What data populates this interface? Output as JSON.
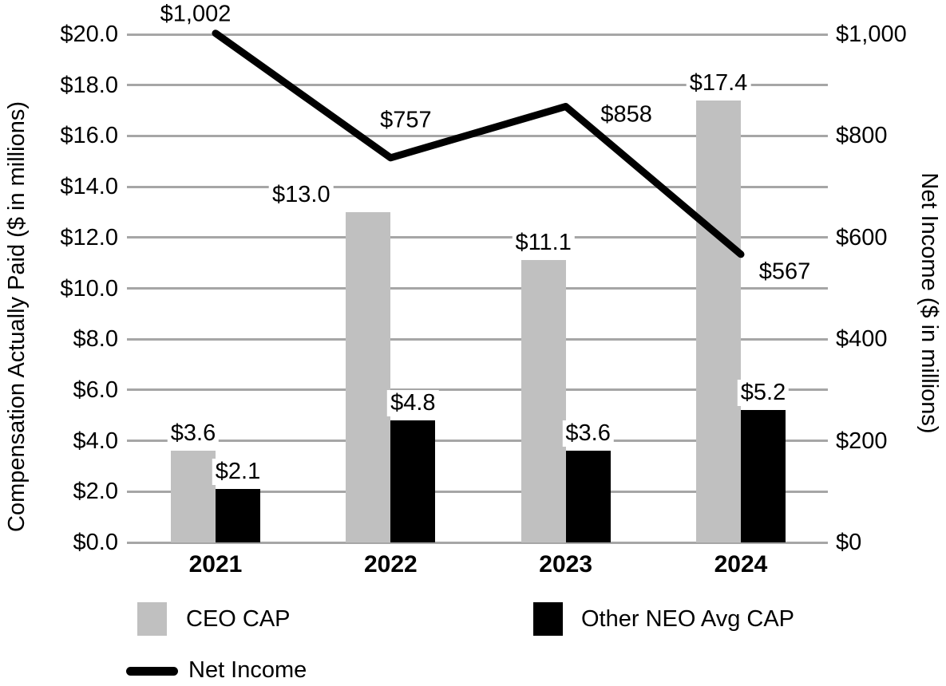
{
  "chart_data": {
    "type": "combo-bar-line",
    "categories": [
      "2021",
      "2022",
      "2023",
      "2024"
    ],
    "series": [
      {
        "type": "bar",
        "name": "CEO CAP",
        "axis": "left",
        "color": "#c0c0c0",
        "values": [
          3.6,
          13.0,
          11.1,
          17.4
        ],
        "labels": [
          "$3.6",
          "$13.0",
          "$11.1",
          "$17.4"
        ]
      },
      {
        "type": "bar",
        "name": "Other NEO Avg CAP",
        "axis": "left",
        "color": "#000000",
        "values": [
          2.1,
          4.8,
          3.6,
          5.2
        ],
        "labels": [
          "$2.1",
          "$4.8",
          "$3.6",
          "$5.2"
        ]
      },
      {
        "type": "line",
        "name": "Net Income",
        "axis": "right",
        "color": "#000000",
        "values": [
          1002,
          757,
          858,
          567
        ],
        "labels": [
          "$1,002",
          "$757",
          "$858",
          "$567"
        ]
      }
    ],
    "left_axis": {
      "title": "Compensation Actually Paid ($ in millions)",
      "min": 0,
      "max": 20,
      "step": 2,
      "tick_labels": [
        "$0.0",
        "$2.0",
        "$4.0",
        "$6.0",
        "$8.0",
        "$10.0",
        "$12.0",
        "$14.0",
        "$16.0",
        "$18.0",
        "$20.0"
      ]
    },
    "right_axis": {
      "title": "Net Income ($ in millions)",
      "min": 0,
      "max": 1000,
      "step": 200,
      "tick_labels": [
        "$0",
        "$200",
        "$400",
        "$600",
        "$800",
        "$1,000"
      ]
    },
    "legend": {
      "items": [
        "CEO CAP",
        "Other NEO Avg CAP",
        "Net Income"
      ],
      "position": "bottom"
    },
    "grid": true,
    "colors": {
      "bar_gray": "#c0c0c0",
      "bar_black": "#000000",
      "line": "#000000",
      "gridline": "#a6a6a6",
      "text": "#000000",
      "background": "#ffffff"
    }
  }
}
